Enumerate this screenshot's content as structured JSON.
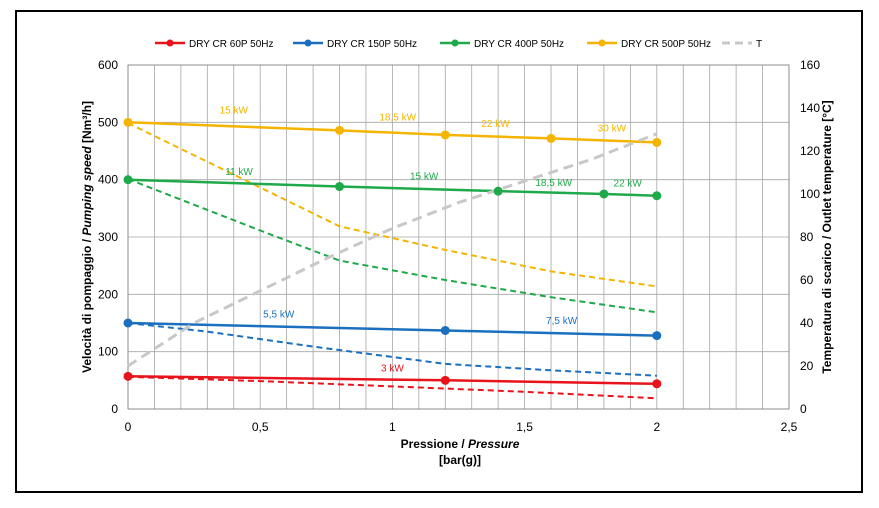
{
  "chart_data": {
    "type": "line",
    "xlabel": {
      "main": "Pressione / ",
      "italic": "Pressure",
      "unit": "[bar(g)]"
    },
    "ylabel_left": {
      "main": "Velocità di pompaggio / ",
      "italic": "Pumping speed",
      "unit": " [Nm³/h]"
    },
    "ylabel_right": "Temperatura di scarico / Outlet temperature [°C]",
    "xlim": [
      0,
      2.5
    ],
    "ylim_left": [
      0,
      600
    ],
    "ylim_right": [
      0,
      160
    ],
    "x_ticks": [
      0,
      0.5,
      1,
      1.5,
      2,
      2.5
    ],
    "x_tick_labels": [
      "0",
      "0,5",
      "1",
      "1,5",
      "2",
      "2,5"
    ],
    "y_left_ticks": [
      0,
      100,
      200,
      300,
      400,
      500,
      600
    ],
    "y_right_ticks": [
      0,
      20,
      40,
      60,
      80,
      100,
      120,
      140,
      160
    ],
    "grid": true,
    "legend_position": "top",
    "series": [
      {
        "name": "DRY CR 60P 50Hz",
        "color": "#e8131b",
        "style": "solid",
        "axis": "left",
        "points": [
          [
            0,
            57
          ],
          [
            1.2,
            50
          ],
          [
            2,
            44
          ]
        ]
      },
      {
        "name": "DRY CR 150P 50Hz",
        "color": "#1b6fbf",
        "style": "solid",
        "axis": "left",
        "points": [
          [
            0,
            150
          ],
          [
            1.2,
            137
          ],
          [
            2,
            128
          ]
        ]
      },
      {
        "name": "DRY CR 400P 50Hz",
        "color": "#1ea94a",
        "style": "solid",
        "axis": "left",
        "points": [
          [
            0,
            400
          ],
          [
            0.8,
            388
          ],
          [
            1.4,
            380
          ],
          [
            1.8,
            375
          ],
          [
            2,
            372
          ]
        ]
      },
      {
        "name": "DRY CR 500P 50Hz",
        "color": "#f5b400",
        "style": "solid",
        "axis": "left",
        "points": [
          [
            0,
            500
          ],
          [
            0.8,
            486
          ],
          [
            1.2,
            478
          ],
          [
            1.6,
            472
          ],
          [
            2,
            465
          ]
        ]
      },
      {
        "name": "T",
        "color": "#c8c8c8",
        "style": "dashed",
        "axis": "right",
        "points": [
          [
            0,
            20
          ],
          [
            0.25,
            40
          ],
          [
            0.5,
            55
          ],
          [
            0.75,
            70
          ],
          [
            1,
            84
          ],
          [
            1.25,
            96
          ],
          [
            1.5,
            106
          ],
          [
            1.75,
            116
          ],
          [
            2,
            128
          ]
        ]
      }
    ],
    "temperature_curves": [
      {
        "color": "#e8131b",
        "points": [
          [
            0,
            15
          ],
          [
            0.5,
            13
          ],
          [
            1,
            10.5
          ],
          [
            1.5,
            8
          ],
          [
            2,
            5
          ]
        ]
      },
      {
        "color": "#1b6fbf",
        "points": [
          [
            0,
            40
          ],
          [
            0.3,
            36
          ],
          [
            0.7,
            29
          ],
          [
            1.2,
            21
          ],
          [
            1.6,
            18
          ],
          [
            2,
            15.5
          ]
        ]
      },
      {
        "color": "#1ea94a",
        "points": [
          [
            0,
            107
          ],
          [
            0.5,
            83
          ],
          [
            0.8,
            69
          ],
          [
            1.2,
            60
          ],
          [
            1.6,
            52
          ],
          [
            2,
            45
          ]
        ]
      },
      {
        "color": "#f5b400",
        "points": [
          [
            0,
            133
          ],
          [
            0.5,
            103
          ],
          [
            0.8,
            85
          ],
          [
            1.2,
            74
          ],
          [
            1.6,
            64
          ],
          [
            2,
            57
          ]
        ]
      }
    ],
    "annotations": [
      {
        "text": "15 kW",
        "x": 0.4,
        "y": 515,
        "color": "#f5b400"
      },
      {
        "text": "18,5 kW",
        "x": 1.02,
        "y": 503,
        "color": "#f5b400"
      },
      {
        "text": "22 kW",
        "x": 1.39,
        "y": 492,
        "color": "#f5b400"
      },
      {
        "text": "30 kW",
        "x": 1.83,
        "y": 484,
        "color": "#f5b400"
      },
      {
        "text": "11 kW",
        "x": 0.42,
        "y": 408,
        "color": "#1ea94a"
      },
      {
        "text": "15 kW",
        "x": 1.12,
        "y": 400,
        "color": "#1ea94a"
      },
      {
        "text": "18,5 kW",
        "x": 1.61,
        "y": 389,
        "color": "#1ea94a"
      },
      {
        "text": "22 kW",
        "x": 1.89,
        "y": 388,
        "color": "#1ea94a"
      },
      {
        "text": "5,5 kW",
        "x": 0.57,
        "y": 160,
        "color": "#1b6fbf"
      },
      {
        "text": "7,5 kW",
        "x": 1.64,
        "y": 148,
        "color": "#1b6fbf"
      },
      {
        "text": "3 kW",
        "x": 1.0,
        "y": 65,
        "color": "#e8131b"
      }
    ]
  }
}
